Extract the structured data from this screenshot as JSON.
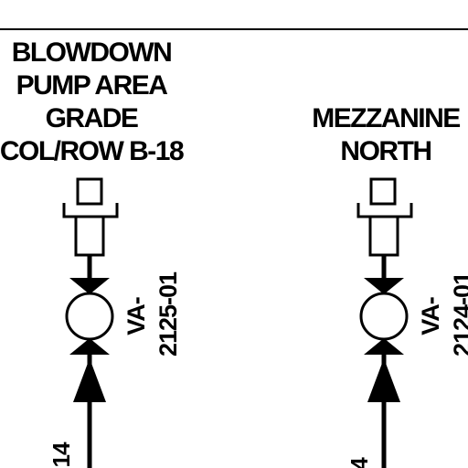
{
  "left_branch": {
    "location_lines": [
      "BLOWDOWN",
      "PUMP AREA",
      "GRADE",
      "COL/ROW B-18"
    ],
    "valve_tag_line1": "VA-",
    "valve_tag_line2": "2125-01",
    "line_number_fragment": "14"
  },
  "right_branch": {
    "location_lines": [
      "MEZZANINE",
      "NORTH"
    ],
    "valve_tag_line1": "VA-",
    "valve_tag_line2": "2124-01",
    "line_number_fragment": "4"
  },
  "colors": {
    "line": "#000000",
    "background": "#ffffff"
  }
}
